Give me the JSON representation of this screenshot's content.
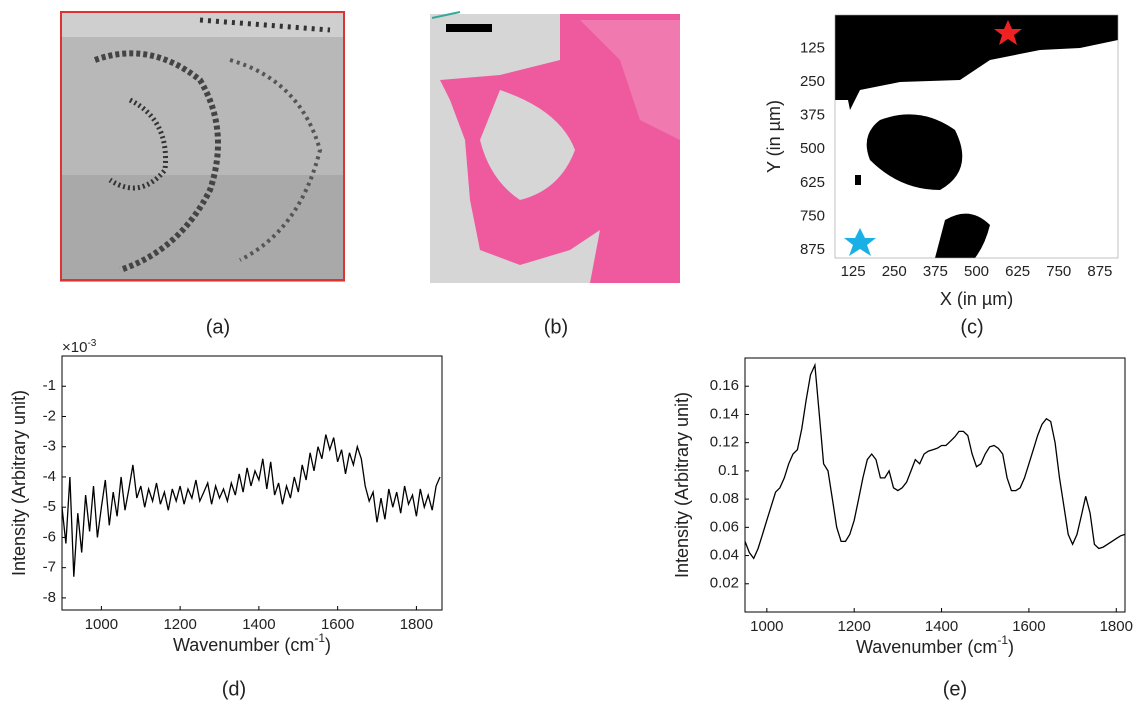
{
  "panels": [
    {
      "label": "(a)"
    },
    {
      "label": "(b)"
    }
  ],
  "chart_data": [
    {
      "type": "map",
      "label": "(c)",
      "x_label": "X (in µm)",
      "y_label": "Y (in µm)",
      "xlim": [
        70,
        930
      ],
      "ylim": [
        905,
        0
      ],
      "xticks": [
        125,
        250,
        375,
        500,
        625,
        750,
        875
      ],
      "yticks": [
        125,
        250,
        375,
        500,
        625,
        750,
        875
      ]
    },
    {
      "type": "line",
      "label": "(d)",
      "color": "#000000",
      "x_label": "Wavenumber (cm",
      "x_label_superscript": "-1",
      "x_label_end": ")",
      "y_label": "Intensity (Arbitrary unit)",
      "y_multiplier": "×10",
      "y_multiplier_exponent": "-3",
      "xlim": [
        900,
        1865
      ],
      "ylim": [
        -8.4,
        0
      ],
      "xticks": [
        1000,
        1200,
        1400,
        1600,
        1800
      ],
      "yticks": [
        -1,
        -2,
        -3,
        -4,
        -5,
        -6,
        -7,
        -8
      ],
      "x": [
        900,
        910,
        920,
        930,
        940,
        950,
        960,
        970,
        980,
        990,
        1000,
        1010,
        1020,
        1030,
        1040,
        1050,
        1060,
        1070,
        1080,
        1090,
        1100,
        1110,
        1120,
        1130,
        1140,
        1150,
        1160,
        1170,
        1180,
        1190,
        1200,
        1210,
        1220,
        1230,
        1240,
        1250,
        1260,
        1270,
        1280,
        1290,
        1300,
        1310,
        1320,
        1330,
        1340,
        1350,
        1360,
        1370,
        1380,
        1390,
        1400,
        1410,
        1420,
        1430,
        1440,
        1450,
        1460,
        1470,
        1480,
        1490,
        1500,
        1510,
        1520,
        1530,
        1540,
        1550,
        1560,
        1570,
        1580,
        1590,
        1600,
        1610,
        1620,
        1630,
        1640,
        1650,
        1660,
        1670,
        1680,
        1690,
        1700,
        1710,
        1720,
        1730,
        1740,
        1750,
        1760,
        1770,
        1780,
        1790,
        1800,
        1810,
        1820,
        1830,
        1840,
        1850,
        1860
      ],
      "values": [
        -5.0,
        -6.2,
        -4.0,
        -7.3,
        -5.2,
        -6.5,
        -4.6,
        -5.8,
        -4.3,
        -6.0,
        -5.0,
        -4.1,
        -5.6,
        -4.5,
        -5.3,
        -4.0,
        -5.1,
        -4.4,
        -3.6,
        -4.7,
        -4.3,
        -5.0,
        -4.4,
        -4.8,
        -4.2,
        -4.9,
        -4.5,
        -5.1,
        -4.4,
        -4.8,
        -4.3,
        -4.9,
        -4.4,
        -4.7,
        -4.1,
        -4.8,
        -4.5,
        -4.2,
        -4.9,
        -4.3,
        -4.7,
        -4.4,
        -4.8,
        -4.2,
        -4.6,
        -3.9,
        -4.5,
        -3.7,
        -4.3,
        -3.8,
        -4.1,
        -3.4,
        -4.4,
        -3.5,
        -4.6,
        -4.2,
        -4.9,
        -4.3,
        -4.7,
        -4.0,
        -4.5,
        -3.6,
        -4.1,
        -3.2,
        -3.8,
        -3.0,
        -3.4,
        -2.6,
        -3.1,
        -2.7,
        -3.5,
        -3.1,
        -3.9,
        -3.2,
        -3.6,
        -3.0,
        -3.4,
        -4.3,
        -4.8,
        -4.5,
        -5.5,
        -4.7,
        -5.4,
        -4.4,
        -5.0,
        -4.5,
        -5.2,
        -4.3,
        -4.9,
        -4.6,
        -5.3,
        -4.4,
        -5.0,
        -4.6,
        -5.1,
        -4.3,
        -4.0
      ]
    },
    {
      "type": "line",
      "label": "(e)",
      "color": "#000000",
      "x_label": "Wavenumber (cm",
      "x_label_superscript": "-1",
      "x_label_end": ")",
      "y_label": "Intensity (Arbitrary unit)",
      "xlim": [
        950,
        1820
      ],
      "ylim": [
        0,
        0.18
      ],
      "xticks": [
        1000,
        1200,
        1400,
        1600,
        1800
      ],
      "yticks": [
        0.02,
        0.04,
        0.06,
        0.08,
        0.1,
        0.12,
        0.14,
        0.16
      ],
      "x": [
        950,
        960,
        970,
        980,
        990,
        1000,
        1010,
        1020,
        1030,
        1040,
        1050,
        1060,
        1070,
        1080,
        1090,
        1100,
        1110,
        1120,
        1130,
        1140,
        1150,
        1160,
        1170,
        1180,
        1190,
        1200,
        1210,
        1220,
        1230,
        1240,
        1250,
        1260,
        1270,
        1280,
        1290,
        1300,
        1310,
        1320,
        1330,
        1340,
        1350,
        1360,
        1370,
        1380,
        1390,
        1400,
        1410,
        1420,
        1430,
        1440,
        1450,
        1460,
        1470,
        1480,
        1490,
        1500,
        1510,
        1520,
        1530,
        1540,
        1550,
        1560,
        1570,
        1580,
        1590,
        1600,
        1610,
        1620,
        1630,
        1640,
        1650,
        1660,
        1670,
        1680,
        1690,
        1700,
        1710,
        1720,
        1730,
        1740,
        1750,
        1760,
        1770,
        1780,
        1790,
        1800,
        1810,
        1820
      ],
      "values": [
        0.05,
        0.042,
        0.038,
        0.045,
        0.055,
        0.065,
        0.075,
        0.085,
        0.088,
        0.095,
        0.105,
        0.112,
        0.115,
        0.13,
        0.15,
        0.168,
        0.175,
        0.14,
        0.105,
        0.1,
        0.08,
        0.06,
        0.05,
        0.05,
        0.055,
        0.065,
        0.08,
        0.095,
        0.108,
        0.112,
        0.108,
        0.095,
        0.095,
        0.1,
        0.088,
        0.086,
        0.088,
        0.092,
        0.1,
        0.108,
        0.105,
        0.112,
        0.114,
        0.115,
        0.116,
        0.118,
        0.118,
        0.121,
        0.124,
        0.128,
        0.128,
        0.125,
        0.112,
        0.103,
        0.105,
        0.112,
        0.117,
        0.118,
        0.116,
        0.112,
        0.095,
        0.086,
        0.086,
        0.088,
        0.095,
        0.105,
        0.115,
        0.125,
        0.133,
        0.137,
        0.135,
        0.12,
        0.095,
        0.075,
        0.055,
        0.048,
        0.055,
        0.068,
        0.082,
        0.07,
        0.048,
        0.045,
        0.046,
        0.048,
        0.05,
        0.052,
        0.054,
        0.055
      ]
    }
  ]
}
